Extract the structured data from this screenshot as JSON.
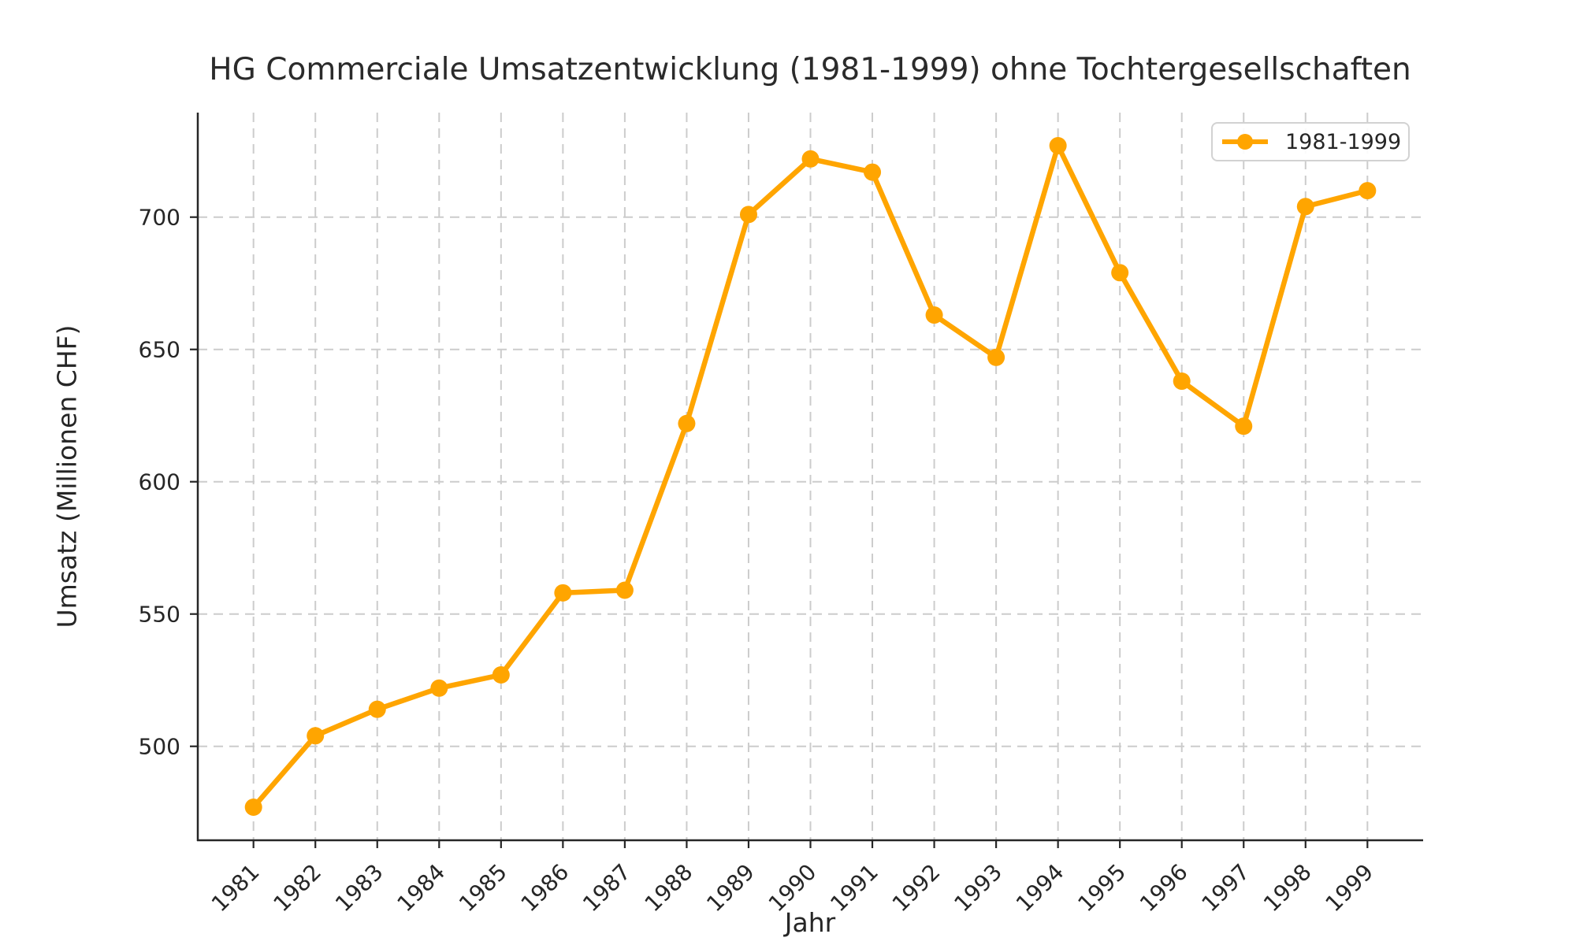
{
  "chart_data": {
    "type": "line",
    "title": "HG Commerciale Umsatzentwicklung (1981-1999) ohne Tochtergesellschaften",
    "xlabel": "Jahr",
    "ylabel": "Umsatz (Millionen CHF)",
    "categories": [
      "1981",
      "1982",
      "1983",
      "1984",
      "1985",
      "1986",
      "1987",
      "1988",
      "1989",
      "1990",
      "1991",
      "1992",
      "1993",
      "1994",
      "1995",
      "1996",
      "1997",
      "1998",
      "1999"
    ],
    "series": [
      {
        "name": "1981-1999",
        "values": [
          477,
          504,
          514,
          522,
          527,
          558,
          559,
          622,
          701,
          722,
          717,
          663,
          647,
          727,
          679,
          638,
          621,
          704,
          710
        ]
      }
    ],
    "yticks": [
      500,
      550,
      600,
      650,
      700
    ],
    "ylim": [
      464.5,
      739.5
    ],
    "grid": true,
    "grid_style": "dashed",
    "legend_position": "upper right",
    "legend_entries": [
      "1981-1999"
    ]
  },
  "colors": {
    "line": "#FFA500",
    "grid": "#cccccc",
    "spine": "#262626",
    "text": "#262626",
    "legend_border": "#d2d2d2",
    "background": "#ffffff"
  }
}
